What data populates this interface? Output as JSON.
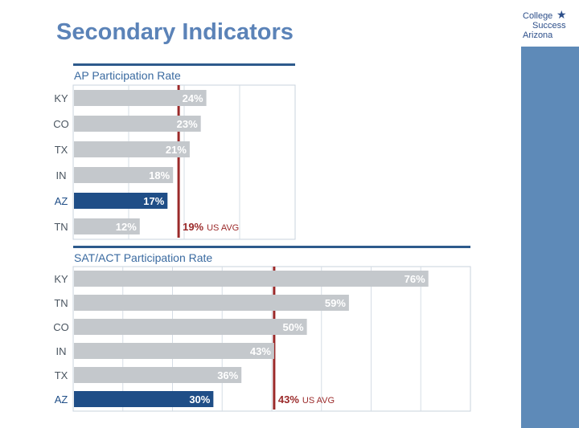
{
  "slide": {
    "title": "Secondary Indicators"
  },
  "logo": {
    "line1": "College",
    "line2": "Success",
    "line3": "Arizona"
  },
  "colors": {
    "title": "#5b83b8",
    "bar_gray": "#c4c8cc",
    "bar_highlight": "#1f4e87",
    "avg_line": "#9b2a2a",
    "sidebar": "#5e8ab8",
    "header_rule": "#2d5a8c"
  },
  "chart_data": [
    {
      "type": "bar",
      "orientation": "horizontal",
      "title": "AP Participation Rate",
      "categories": [
        "KY",
        "CO",
        "TX",
        "IN",
        "AZ",
        "TN"
      ],
      "values": [
        24,
        23,
        21,
        18,
        17,
        12
      ],
      "value_labels": [
        "24%",
        "23%",
        "21%",
        "18%",
        "17%",
        "12%"
      ],
      "highlight": "AZ",
      "xlim": [
        0,
        40
      ],
      "grid": true,
      "reference_line": {
        "value": 19,
        "label_value": "19%",
        "label_text": "US AVG"
      }
    },
    {
      "type": "bar",
      "orientation": "horizontal",
      "title": "SAT/ACT Participation Rate",
      "categories": [
        "KY",
        "TN",
        "CO",
        "IN",
        "TX",
        "AZ"
      ],
      "values": [
        76,
        59,
        50,
        43,
        36,
        30
      ],
      "value_labels": [
        "76%",
        "59%",
        "50%",
        "43%",
        "36%",
        "30%"
      ],
      "highlight": "AZ",
      "xlim": [
        0,
        85
      ],
      "grid": true,
      "reference_line": {
        "value": 43,
        "label_value": "43%",
        "label_text": "US AVG"
      }
    }
  ]
}
